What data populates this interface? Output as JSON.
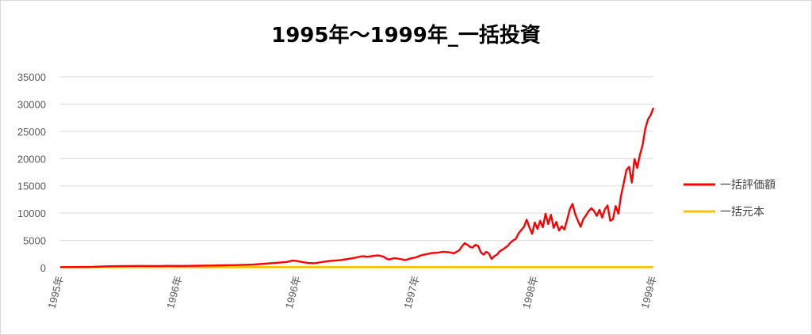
{
  "chart_data": {
    "type": "line",
    "title": "1995年～1999年_一括投資",
    "xlabel": "",
    "ylabel": "",
    "ylim": [
      0,
      35000
    ],
    "yticks": [
      0,
      5000,
      10000,
      15000,
      20000,
      25000,
      30000,
      35000
    ],
    "ytick_labels": [
      "0",
      "5000",
      "10000",
      "15000",
      "20000",
      "25000",
      "30000",
      "35000"
    ],
    "xtick_labels": [
      "1995年",
      "1996年",
      "1996年",
      "1997年",
      "1998年",
      "1999年"
    ],
    "grid": true,
    "legend_position": "right",
    "series": [
      {
        "name": "一括評価額",
        "color": "#ff0000",
        "values": [
          [
            0.0,
            100
          ],
          [
            0.03,
            110
          ],
          [
            0.06,
            150
          ],
          [
            0.09,
            260
          ],
          [
            0.12,
            300
          ],
          [
            0.15,
            320
          ],
          [
            0.18,
            300
          ],
          [
            0.2,
            330
          ],
          [
            0.22,
            320
          ],
          [
            0.24,
            340
          ],
          [
            0.26,
            360
          ],
          [
            0.28,
            390
          ],
          [
            0.3,
            430
          ],
          [
            0.32,
            470
          ],
          [
            0.34,
            520
          ],
          [
            0.36,
            600
          ],
          [
            0.38,
            720
          ],
          [
            0.4,
            880
          ],
          [
            0.42,
            1050
          ],
          [
            0.43,
            1300
          ],
          [
            0.44,
            1200
          ],
          [
            0.45,
            1000
          ],
          [
            0.46,
            850
          ],
          [
            0.47,
            800
          ],
          [
            0.48,
            950
          ],
          [
            0.49,
            1100
          ],
          [
            0.5,
            1250
          ],
          [
            0.51,
            1300
          ],
          [
            0.52,
            1400
          ],
          [
            0.53,
            1550
          ],
          [
            0.54,
            1700
          ],
          [
            0.55,
            1900
          ],
          [
            0.56,
            2100
          ],
          [
            0.57,
            2000
          ],
          [
            0.58,
            2150
          ],
          [
            0.59,
            2250
          ],
          [
            0.6,
            2000
          ],
          [
            0.605,
            1650
          ],
          [
            0.61,
            1500
          ],
          [
            0.62,
            1750
          ],
          [
            0.63,
            1600
          ],
          [
            0.64,
            1400
          ],
          [
            0.65,
            1700
          ],
          [
            0.66,
            1900
          ],
          [
            0.67,
            2300
          ],
          [
            0.68,
            2500
          ],
          [
            0.69,
            2700
          ],
          [
            0.7,
            2750
          ],
          [
            0.71,
            2900
          ],
          [
            0.72,
            2850
          ],
          [
            0.73,
            2650
          ],
          [
            0.74,
            3200
          ],
          [
            0.745,
            3900
          ],
          [
            0.75,
            4500
          ],
          [
            0.755,
            4200
          ],
          [
            0.76,
            3800
          ],
          [
            0.765,
            3700
          ],
          [
            0.77,
            4200
          ],
          [
            0.775,
            4000
          ],
          [
            0.78,
            2800
          ],
          [
            0.785,
            2400
          ],
          [
            0.79,
            2900
          ],
          [
            0.795,
            2600
          ],
          [
            0.8,
            1600
          ],
          [
            0.805,
            2100
          ],
          [
            0.81,
            2400
          ],
          [
            0.815,
            3000
          ],
          [
            0.82,
            3300
          ],
          [
            0.83,
            4000
          ],
          [
            0.835,
            4600
          ],
          [
            0.84,
            5000
          ],
          [
            0.845,
            5300
          ],
          [
            0.85,
            6300
          ],
          [
            0.855,
            6900
          ],
          [
            0.86,
            7500
          ],
          [
            0.865,
            8800
          ],
          [
            0.87,
            7400
          ],
          [
            0.875,
            6200
          ],
          [
            0.88,
            8300
          ],
          [
            0.885,
            7100
          ],
          [
            0.89,
            8600
          ],
          [
            0.895,
            7400
          ],
          [
            0.9,
            9900
          ],
          [
            0.905,
            8000
          ],
          [
            0.91,
            9700
          ],
          [
            0.915,
            7300
          ],
          [
            0.92,
            8400
          ],
          [
            0.925,
            6800
          ],
          [
            0.93,
            7600
          ],
          [
            0.935,
            7000
          ],
          [
            0.94,
            8800
          ],
          [
            0.945,
            10700
          ],
          [
            0.95,
            11700
          ],
          [
            0.955,
            9800
          ],
          [
            0.96,
            8600
          ],
          [
            0.965,
            7500
          ],
          [
            0.97,
            8900
          ],
          [
            0.975,
            9600
          ],
          [
            0.98,
            10400
          ],
          [
            0.985,
            10900
          ],
          [
            0.99,
            10400
          ],
          [
            0.995,
            9500
          ],
          [
            1.0,
            10600
          ],
          [
            1.005,
            9200
          ],
          [
            1.01,
            10700
          ],
          [
            1.015,
            11400
          ],
          [
            1.02,
            8600
          ],
          [
            1.025,
            8900
          ],
          [
            1.03,
            11300
          ],
          [
            1.035,
            9900
          ],
          [
            1.04,
            13200
          ],
          [
            1.045,
            15500
          ],
          [
            1.05,
            17900
          ],
          [
            1.055,
            18500
          ],
          [
            1.06,
            15600
          ],
          [
            1.065,
            19900
          ],
          [
            1.07,
            18300
          ],
          [
            1.075,
            20700
          ],
          [
            1.08,
            22500
          ],
          [
            1.085,
            25500
          ],
          [
            1.09,
            27200
          ],
          [
            1.095,
            28000
          ],
          [
            1.1,
            29300
          ]
        ]
      },
      {
        "name": "一括元本",
        "color": "#ffc000",
        "values": [
          [
            0.0,
            100
          ],
          [
            1.1,
            100
          ]
        ]
      }
    ]
  }
}
